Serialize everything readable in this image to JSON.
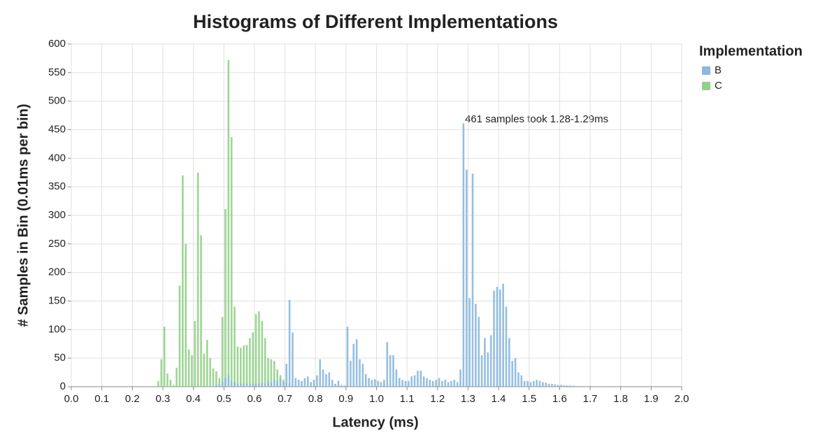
{
  "chart_data": {
    "type": "histogram",
    "title": "Histograms of Different Implementations",
    "x_label": "Latency (ms)",
    "y_label": "# Samples in Bin (0.01ms per bin)",
    "legend_title": "Implementation",
    "legend": "right",
    "grid": true,
    "annotation": "461 samples took 1.28-1.29ms",
    "xlim": [
      0,
      2
    ],
    "ylim": [
      0,
      600
    ],
    "xticks": [
      {
        "value": 0,
        "label": "0.0"
      },
      0.1,
      0.2,
      0.3,
      0.4,
      0.5,
      0.6,
      0.7,
      0.8,
      0.9,
      {
        "value": 1,
        "label": "1.0"
      },
      1.1,
      1.2,
      1.3,
      1.4,
      1.5,
      1.6,
      1.7,
      1.8,
      1.9,
      {
        "value": 2,
        "label": "2.0"
      }
    ],
    "yticks": [
      0,
      50,
      100,
      150,
      200,
      250,
      300,
      350,
      400,
      450,
      500,
      550,
      600
    ],
    "bins": [
      0,
      0.01,
      0.02,
      0.03,
      0.04,
      0.05,
      0.06,
      0.07,
      0.08,
      0.09,
      0.1,
      0.11,
      0.12,
      0.13,
      0.14,
      0.15,
      0.16,
      0.17,
      0.18,
      0.19,
      0.2,
      0.21,
      0.22,
      0.23,
      0.24,
      0.25,
      0.26,
      0.27,
      0.28,
      0.29,
      0.3,
      0.31,
      0.32,
      0.33,
      0.34,
      0.35,
      0.36,
      0.37,
      0.38,
      0.39,
      0.4,
      0.41,
      0.42,
      0.43,
      0.44,
      0.45,
      0.46,
      0.47,
      0.48,
      0.49,
      0.5,
      0.51,
      0.52,
      0.53,
      0.54,
      0.55,
      0.56,
      0.57,
      0.58,
      0.59,
      0.6,
      0.61,
      0.62,
      0.63,
      0.64,
      0.65,
      0.66,
      0.67,
      0.68,
      0.69,
      0.7,
      0.71,
      0.72,
      0.73,
      0.74,
      0.75,
      0.76,
      0.77,
      0.78,
      0.79,
      0.8,
      0.81,
      0.82,
      0.83,
      0.84,
      0.85,
      0.86,
      0.87,
      0.88,
      0.89,
      0.9,
      0.91,
      0.92,
      0.93,
      0.94,
      0.95,
      0.96,
      0.97,
      0.98,
      0.99,
      1,
      1.01,
      1.02,
      1.03,
      1.04,
      1.05,
      1.06,
      1.07,
      1.08,
      1.09,
      1.1,
      1.11,
      1.12,
      1.13,
      1.14,
      1.15,
      1.16,
      1.17,
      1.18,
      1.19,
      1.2,
      1.21,
      1.22,
      1.23,
      1.24,
      1.25,
      1.26,
      1.27,
      1.28,
      1.29,
      1.3,
      1.31,
      1.32,
      1.33,
      1.34,
      1.35,
      1.36,
      1.37,
      1.38,
      1.39,
      1.4,
      1.41,
      1.42,
      1.43,
      1.44,
      1.45,
      1.46,
      1.47,
      1.48,
      1.49,
      1.5,
      1.51,
      1.52,
      1.53,
      1.54,
      1.55,
      1.56,
      1.57,
      1.58,
      1.59,
      1.6,
      1.61,
      1.62,
      1.63,
      1.64,
      1.65,
      1.66,
      1.67,
      1.68,
      1.69,
      1.7,
      1.71,
      1.72,
      1.73,
      1.74,
      1.75,
      1.76,
      1.77,
      1.78,
      1.79,
      1.8,
      1.81,
      1.82,
      1.83,
      1.84,
      1.85,
      1.86,
      1.87,
      1.88,
      1.89,
      1.9,
      1.91,
      1.92,
      1.93,
      1.94,
      1.95,
      1.96,
      1.97,
      1.98,
      1.99,
      2
    ],
    "series": [
      {
        "name": "B",
        "color": "#8bb8dc",
        "values": [
          0,
          0,
          0,
          0,
          0,
          0,
          0,
          0,
          0,
          0,
          0,
          0,
          0,
          0,
          0,
          0,
          0,
          0,
          0,
          0,
          0,
          0,
          0,
          0,
          0,
          0,
          0,
          0,
          0,
          0,
          0,
          0,
          0,
          0,
          0,
          0,
          0,
          0,
          0,
          0,
          0,
          0,
          0,
          0,
          0,
          0,
          0,
          3,
          5,
          8,
          15,
          20,
          10,
          8,
          5,
          5,
          5,
          5,
          5,
          5,
          5,
          6,
          8,
          6,
          10,
          8,
          12,
          10,
          15,
          8,
          40,
          152,
          95,
          15,
          12,
          10,
          15,
          18,
          8,
          12,
          20,
          48,
          30,
          22,
          25,
          12,
          5,
          10,
          3,
          2,
          105,
          45,
          75,
          83,
          48,
          40,
          22,
          15,
          12,
          13,
          10,
          8,
          12,
          78,
          55,
          55,
          30,
          15,
          12,
          10,
          10,
          18,
          20,
          28,
          28,
          18,
          15,
          12,
          10,
          12,
          15,
          10,
          12,
          8,
          10,
          12,
          8,
          30,
          461,
          380,
          155,
          373,
          145,
          122,
          55,
          85,
          60,
          90,
          168,
          175,
          170,
          180,
          140,
          85,
          45,
          50,
          25,
          20,
          10,
          10,
          8,
          10,
          12,
          10,
          8,
          7,
          5,
          5,
          4,
          3,
          3,
          2,
          2,
          2,
          2,
          1,
          1,
          1,
          0,
          0,
          1,
          0,
          1,
          0,
          0,
          1,
          0,
          0,
          0,
          0,
          0,
          0,
          0,
          0,
          0,
          0,
          1,
          0,
          0,
          0,
          0,
          0,
          0,
          0,
          0,
          0,
          0,
          1,
          0,
          0
        ]
      },
      {
        "name": "C",
        "color": "#93d08a",
        "values": [
          0,
          0,
          0,
          0,
          0,
          0,
          0,
          0,
          0,
          0,
          0,
          0,
          0,
          0,
          0,
          0,
          0,
          0,
          0,
          0,
          0,
          0,
          0,
          0,
          0,
          0,
          0,
          0,
          10,
          48,
          105,
          23,
          12,
          3,
          33,
          177,
          370,
          250,
          65,
          55,
          115,
          375,
          265,
          58,
          82,
          50,
          32,
          27,
          15,
          122,
          311,
          572,
          437,
          140,
          70,
          68,
          72,
          73,
          85,
          95,
          127,
          132,
          115,
          85,
          50,
          48,
          45,
          30,
          20,
          12,
          8,
          5,
          3,
          2,
          0,
          0,
          0,
          0,
          0,
          0,
          0,
          0,
          0,
          0,
          0,
          0,
          0,
          0,
          0,
          0,
          0,
          0,
          0,
          0,
          0,
          0,
          0,
          0,
          0,
          0,
          0,
          0,
          0,
          0,
          0,
          0,
          0,
          0,
          0,
          0,
          0,
          0,
          0,
          0,
          0,
          0,
          0,
          0,
          0,
          0,
          0,
          0,
          0,
          0,
          0,
          0,
          0,
          0,
          0,
          0,
          0,
          0,
          0,
          0,
          0,
          0,
          0,
          0,
          0,
          0,
          0,
          0,
          0,
          0,
          0,
          0,
          0,
          0,
          0,
          0,
          0,
          0,
          0,
          0,
          0,
          0,
          0,
          0,
          0,
          0,
          0,
          0,
          0,
          0,
          0,
          0,
          0,
          0,
          0,
          0,
          0,
          0,
          0,
          0,
          0,
          0,
          0,
          0,
          0,
          0,
          0,
          0,
          0,
          0,
          0,
          0,
          0,
          0,
          0,
          0,
          0,
          0,
          0,
          0,
          0,
          0,
          0,
          0,
          0,
          0
        ]
      }
    ]
  }
}
